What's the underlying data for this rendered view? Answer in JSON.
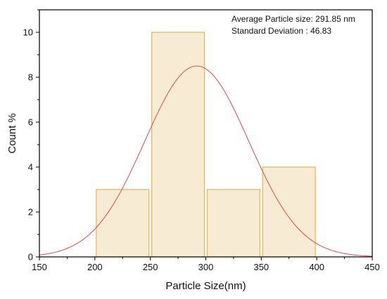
{
  "chart_data": {
    "type": "bar",
    "xlabel": "Particle Size(nm)",
    "ylabel": "Count %",
    "xlim": [
      150,
      450
    ],
    "ylim": [
      0,
      11
    ],
    "xticks": [
      150,
      200,
      250,
      300,
      350,
      400,
      450
    ],
    "yticks": [
      0,
      2,
      4,
      6,
      8,
      10
    ],
    "grid": false,
    "bins": [
      {
        "start": 200,
        "end": 250,
        "value": 3
      },
      {
        "start": 250,
        "end": 300,
        "value": 10
      },
      {
        "start": 300,
        "end": 350,
        "value": 3
      },
      {
        "start": 350,
        "end": 400,
        "value": 4
      }
    ],
    "fit_curve": {
      "type": "normal",
      "mean": 291.85,
      "sd": 46.83,
      "peak": 8.5
    },
    "annotations": [
      "Average Particle size: 291.85 nm",
      "Standard Deviation : 46.83"
    ],
    "colors": {
      "bar_fill": "#f7ecd3",
      "bar_stroke": "#e8b44a",
      "curve": "#e24a4a",
      "axis": "#000000"
    }
  }
}
